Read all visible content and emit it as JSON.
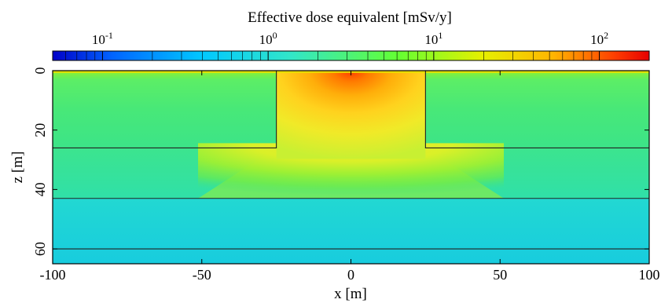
{
  "chart_data": {
    "type": "heatmap",
    "title": "Effective dose equivalent [mSv/y]",
    "xlabel": "x [m]",
    "ylabel": "z [m]",
    "xlim": [
      -100,
      100
    ],
    "ylim": [
      0,
      65
    ],
    "y_axis_inverted": true,
    "x_ticks": [
      -100,
      -50,
      0,
      50,
      100
    ],
    "x_tick_labels": [
      "-100",
      "-50",
      "0",
      "50",
      "100"
    ],
    "y_ticks": [
      0,
      20,
      40,
      60
    ],
    "y_tick_labels": [
      "0",
      "20",
      "40",
      "60"
    ],
    "colorbar": {
      "scale": "log",
      "range": [
        0.05,
        200
      ],
      "ticks": [
        0.1,
        1,
        10,
        100
      ],
      "tick_base": [
        "10",
        "10",
        "10",
        "10"
      ],
      "tick_exponent": [
        "-1",
        "0",
        "1",
        "2"
      ],
      "colormap": [
        "#0000c8",
        "#0064ff",
        "#00c8ff",
        "#32e6c8",
        "#64ff32",
        "#e6f000",
        "#ffb400",
        "#ff4000",
        "#e60000"
      ]
    },
    "boundaries": {
      "channel_x": [
        -25,
        25
      ],
      "channel_bottom_z": 26,
      "layer_z": [
        43,
        60
      ]
    },
    "regions": [
      {
        "zone": "channel_top",
        "value": 100
      },
      {
        "zone": "channel_mid",
        "value": 15
      },
      {
        "zone": "under_channel",
        "value": 4
      },
      {
        "zone": "upper_side",
        "value": 1.5
      },
      {
        "zone": "middle_layer",
        "value": 0.4
      },
      {
        "zone": "lower_layers",
        "value": 0.25
      }
    ]
  }
}
